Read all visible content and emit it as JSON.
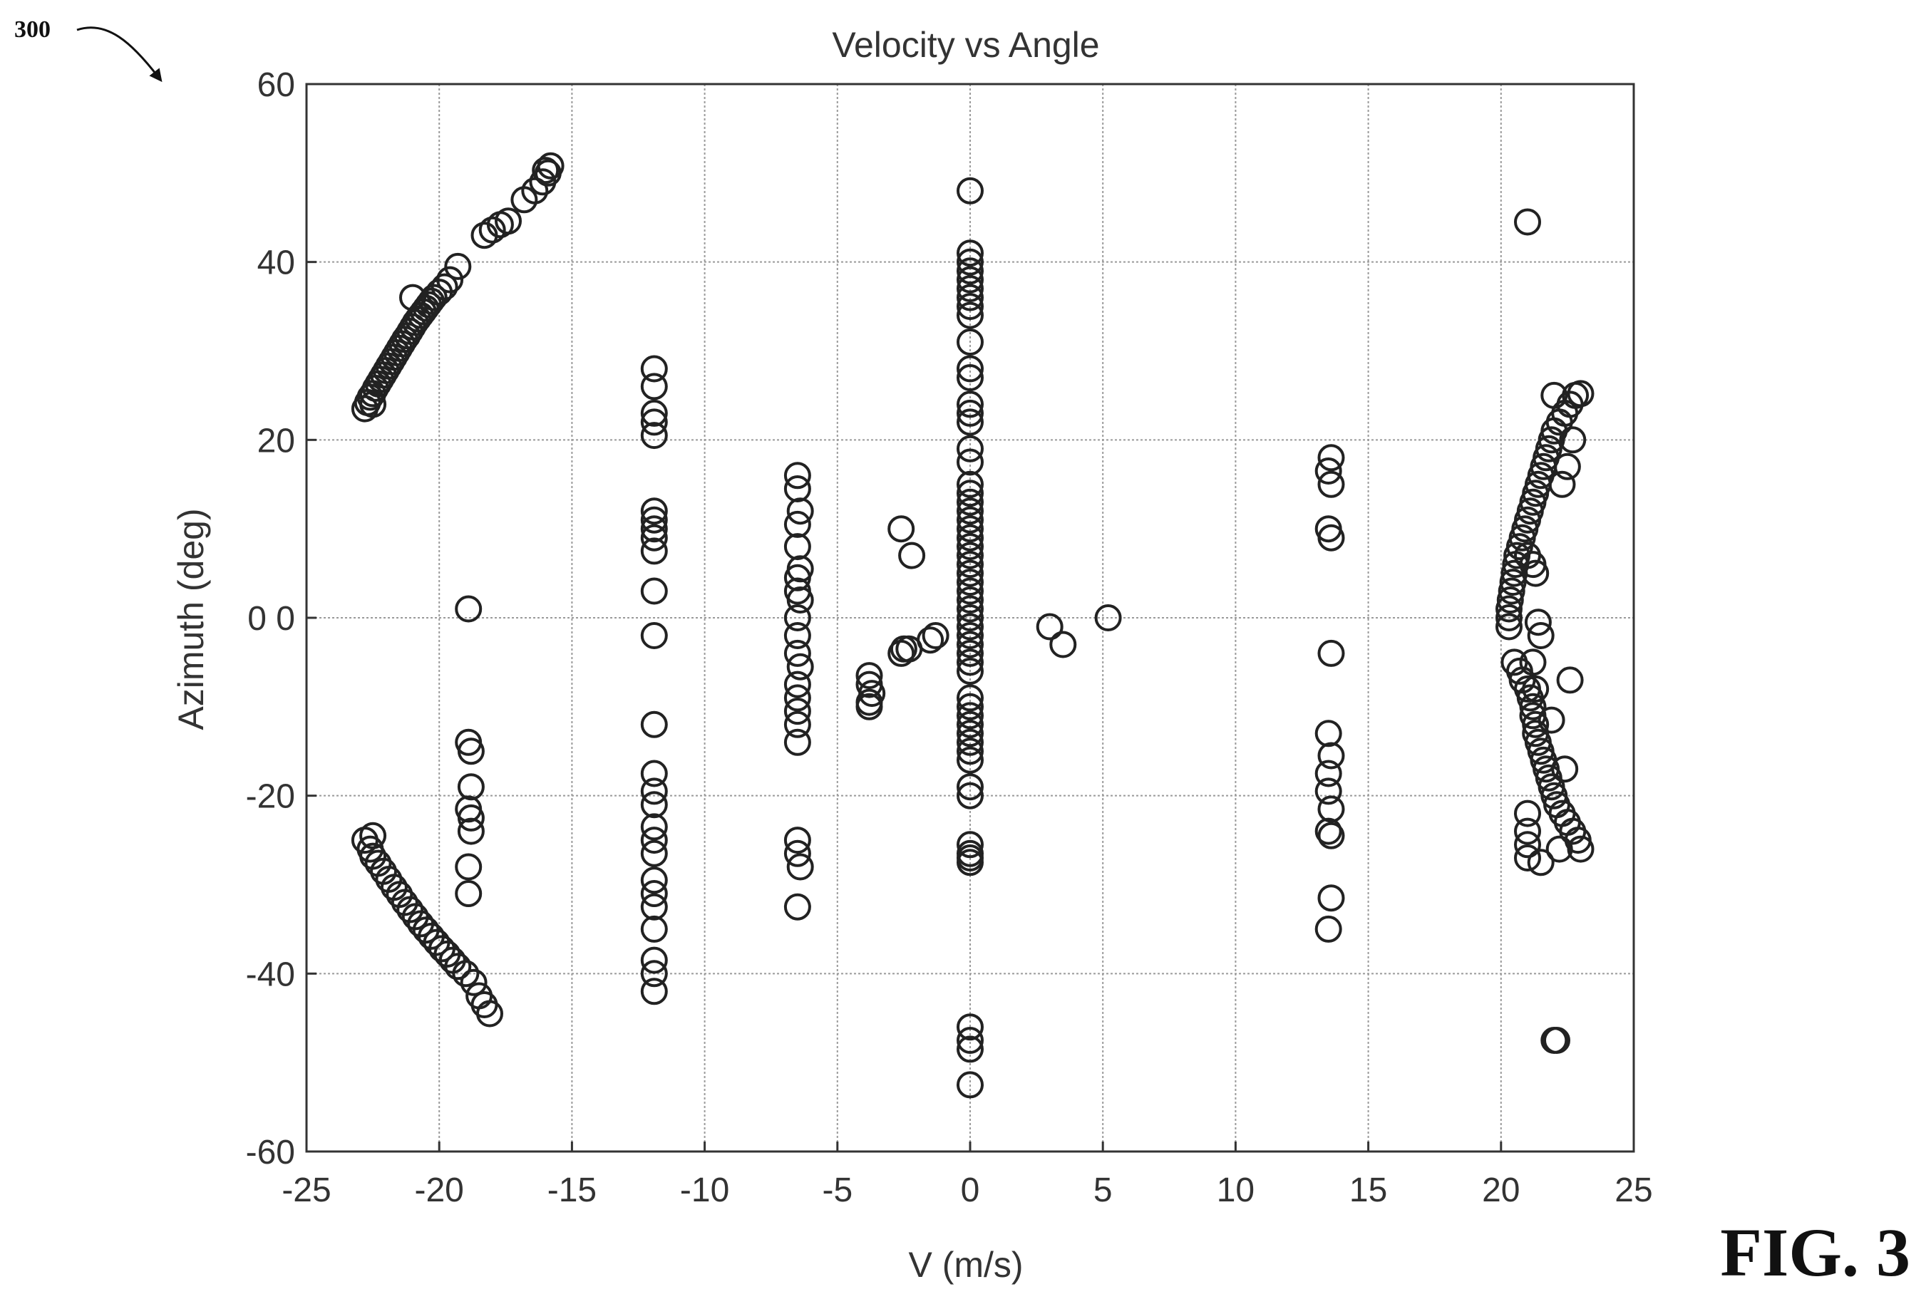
{
  "figure": {
    "ref_number": "300",
    "fig_label": "FIG. 3"
  },
  "chart_data": {
    "type": "scatter",
    "title": "Velocity vs Angle",
    "xlabel": "V (m/s)",
    "ylabel": "Azimuth (deg)",
    "xlim": [
      -25,
      25
    ],
    "ylim": [
      -60,
      60
    ],
    "xticks": [
      -25,
      -20,
      -15,
      -10,
      -5,
      0,
      5,
      10,
      15,
      20,
      25
    ],
    "yticks": [
      -60,
      -40,
      -20,
      0,
      20,
      40,
      60
    ],
    "xtick_labels": [
      "-25",
      "-20",
      "-15",
      "-10",
      "-5",
      "0",
      "5",
      "10",
      "15",
      "20",
      "25"
    ],
    "ytick_labels": [
      "-60",
      "-40",
      "-20",
      "0 0",
      "20",
      "40",
      "60"
    ],
    "grid": true,
    "marker": "open-circle",
    "color": "#222222",
    "points": [
      [
        -22.8,
        23.5
      ],
      [
        -22.7,
        24.2
      ],
      [
        -22.6,
        24.8
      ],
      [
        -22.5,
        25.2
      ],
      [
        -22.4,
        25.8
      ],
      [
        -22.3,
        26.3
      ],
      [
        -22.2,
        26.8
      ],
      [
        -22.1,
        27.3
      ],
      [
        -22.0,
        27.8
      ],
      [
        -21.9,
        28.3
      ],
      [
        -21.8,
        28.8
      ],
      [
        -21.7,
        29.3
      ],
      [
        -21.6,
        29.8
      ],
      [
        -21.5,
        30.3
      ],
      [
        -21.4,
        30.8
      ],
      [
        -21.3,
        31.3
      ],
      [
        -21.2,
        31.7
      ],
      [
        -21.1,
        32.2
      ],
      [
        -21.0,
        32.7
      ],
      [
        -20.9,
        33.2
      ],
      [
        -20.8,
        33.6
      ],
      [
        -20.7,
        34.0
      ],
      [
        -20.6,
        34.4
      ],
      [
        -20.5,
        34.8
      ],
      [
        -20.4,
        35.2
      ],
      [
        -20.3,
        35.6
      ],
      [
        -20.2,
        36.0
      ],
      [
        -20.0,
        36.6
      ],
      [
        -19.8,
        37.2
      ],
      [
        -19.6,
        38.0
      ],
      [
        -19.3,
        39.5
      ],
      [
        -21.0,
        36.0
      ],
      [
        -22.5,
        24.0
      ],
      [
        -18.3,
        43.0
      ],
      [
        -18.0,
        43.6
      ],
      [
        -17.7,
        44.2
      ],
      [
        -17.4,
        44.6
      ],
      [
        -16.8,
        47.0
      ],
      [
        -16.4,
        48.0
      ],
      [
        -16.1,
        49.0
      ],
      [
        -15.9,
        50.0
      ],
      [
        -15.8,
        50.8
      ],
      [
        -16.0,
        50.3
      ],
      [
        -22.8,
        -25.0
      ],
      [
        -22.6,
        -26.0
      ],
      [
        -22.5,
        -26.8
      ],
      [
        -22.3,
        -27.6
      ],
      [
        -22.1,
        -28.5
      ],
      [
        -21.9,
        -29.4
      ],
      [
        -21.7,
        -30.3
      ],
      [
        -21.5,
        -31.1
      ],
      [
        -21.3,
        -32.0
      ],
      [
        -21.1,
        -32.8
      ],
      [
        -20.9,
        -33.6
      ],
      [
        -20.7,
        -34.4
      ],
      [
        -20.5,
        -35.1
      ],
      [
        -20.3,
        -35.8
      ],
      [
        -20.1,
        -36.5
      ],
      [
        -19.9,
        -37.2
      ],
      [
        -19.7,
        -37.8
      ],
      [
        -19.5,
        -38.5
      ],
      [
        -19.3,
        -39.2
      ],
      [
        -19.0,
        -40.0
      ],
      [
        -18.7,
        -41.0
      ],
      [
        -18.5,
        -42.5
      ],
      [
        -18.3,
        -43.5
      ],
      [
        -18.1,
        -44.5
      ],
      [
        -22.5,
        -24.5
      ],
      [
        -18.9,
        1.0
      ],
      [
        -18.9,
        -14.0
      ],
      [
        -18.8,
        -15.0
      ],
      [
        -18.8,
        -19.0
      ],
      [
        -18.9,
        -21.5
      ],
      [
        -18.8,
        -22.5
      ],
      [
        -18.8,
        -24.0
      ],
      [
        -18.9,
        -28.0
      ],
      [
        -18.9,
        -31.0
      ],
      [
        -11.9,
        28.0
      ],
      [
        -11.9,
        26.0
      ],
      [
        -11.9,
        23.0
      ],
      [
        -11.9,
        22.0
      ],
      [
        -11.9,
        20.5
      ],
      [
        -11.9,
        12.0
      ],
      [
        -11.9,
        11.0
      ],
      [
        -11.9,
        10.0
      ],
      [
        -11.9,
        9.0
      ],
      [
        -11.9,
        7.5
      ],
      [
        -11.9,
        3.0
      ],
      [
        -11.9,
        -2.0
      ],
      [
        -11.9,
        -12.0
      ],
      [
        -11.9,
        -17.5
      ],
      [
        -11.9,
        -19.5
      ],
      [
        -11.9,
        -21.0
      ],
      [
        -11.9,
        -23.5
      ],
      [
        -11.9,
        -25.0
      ],
      [
        -11.9,
        -26.5
      ],
      [
        -11.9,
        -29.5
      ],
      [
        -11.9,
        -31.0
      ],
      [
        -11.9,
        -32.5
      ],
      [
        -11.9,
        -35.0
      ],
      [
        -11.9,
        -38.5
      ],
      [
        -11.9,
        -40.0
      ],
      [
        -11.9,
        -42.0
      ],
      [
        -6.5,
        16.0
      ],
      [
        -6.5,
        14.5
      ],
      [
        -6.4,
        12.0
      ],
      [
        -6.5,
        10.5
      ],
      [
        -6.5,
        8.0
      ],
      [
        -6.4,
        5.5
      ],
      [
        -6.5,
        4.5
      ],
      [
        -6.5,
        3.0
      ],
      [
        -6.4,
        2.0
      ],
      [
        -6.5,
        0.0
      ],
      [
        -6.5,
        -2.0
      ],
      [
        -6.5,
        -4.0
      ],
      [
        -6.4,
        -5.5
      ],
      [
        -6.5,
        -7.5
      ],
      [
        -6.5,
        -9.0
      ],
      [
        -6.5,
        -10.5
      ],
      [
        -6.5,
        -12.0
      ],
      [
        -6.5,
        -14.0
      ],
      [
        -6.5,
        -25.0
      ],
      [
        -6.5,
        -26.5
      ],
      [
        -6.4,
        -28.0
      ],
      [
        -6.5,
        -32.5
      ],
      [
        -3.8,
        -6.5
      ],
      [
        -3.8,
        -7.5
      ],
      [
        -3.7,
        -8.5
      ],
      [
        -3.8,
        -9.5
      ],
      [
        -3.8,
        -10.0
      ],
      [
        -2.6,
        10.0
      ],
      [
        -2.2,
        7.0
      ],
      [
        -2.5,
        -3.5
      ],
      [
        -2.3,
        -3.5
      ],
      [
        -2.6,
        -4.0
      ],
      [
        -1.5,
        -2.5
      ],
      [
        -1.3,
        -2.0
      ],
      [
        0,
        48.0
      ],
      [
        0,
        41.0
      ],
      [
        0,
        40.0
      ],
      [
        0,
        39.0
      ],
      [
        0,
        38.0
      ],
      [
        0,
        37.0
      ],
      [
        0,
        36.0
      ],
      [
        0,
        35.0
      ],
      [
        0,
        34.0
      ],
      [
        0,
        31.0
      ],
      [
        0,
        28.0
      ],
      [
        0,
        27.0
      ],
      [
        0,
        24.0
      ],
      [
        0,
        23.0
      ],
      [
        0,
        22.0
      ],
      [
        0,
        19.0
      ],
      [
        0,
        17.5
      ],
      [
        0,
        15.0
      ],
      [
        0,
        14.0
      ],
      [
        0,
        13.0
      ],
      [
        0,
        12.0
      ],
      [
        0,
        11.0
      ],
      [
        0,
        10.0
      ],
      [
        0,
        9.0
      ],
      [
        0,
        8.0
      ],
      [
        0,
        7.0
      ],
      [
        0,
        6.0
      ],
      [
        0,
        5.0
      ],
      [
        0,
        4.0
      ],
      [
        0,
        3.0
      ],
      [
        0,
        2.0
      ],
      [
        0,
        1.0
      ],
      [
        0,
        0.0
      ],
      [
        0,
        -1.0
      ],
      [
        0,
        -2.0
      ],
      [
        0,
        -3.0
      ],
      [
        0,
        -4.0
      ],
      [
        0,
        -5.0
      ],
      [
        0,
        -6.0
      ],
      [
        0,
        -9.0
      ],
      [
        0,
        -10.0
      ],
      [
        0,
        -11.0
      ],
      [
        0,
        -12.0
      ],
      [
        0,
        -13.0
      ],
      [
        0,
        -14.0
      ],
      [
        0,
        -15.0
      ],
      [
        0,
        -16.0
      ],
      [
        0,
        -19.0
      ],
      [
        0,
        -20.0
      ],
      [
        0,
        -25.5
      ],
      [
        0,
        -26.5
      ],
      [
        0,
        -27.0
      ],
      [
        0,
        -27.5
      ],
      [
        0,
        -46.0
      ],
      [
        0,
        -47.5
      ],
      [
        0,
        -48.5
      ],
      [
        0,
        -52.5
      ],
      [
        3.0,
        -1.0
      ],
      [
        3.5,
        -3.0
      ],
      [
        5.2,
        0.0
      ],
      [
        13.6,
        18.0
      ],
      [
        13.5,
        16.5
      ],
      [
        13.6,
        15.0
      ],
      [
        13.5,
        10.0
      ],
      [
        13.6,
        9.0
      ],
      [
        13.6,
        -4.0
      ],
      [
        13.5,
        -13.0
      ],
      [
        13.6,
        -15.5
      ],
      [
        13.5,
        -17.5
      ],
      [
        13.5,
        -19.5
      ],
      [
        13.6,
        -21.5
      ],
      [
        13.5,
        -24.0
      ],
      [
        13.6,
        -24.5
      ],
      [
        13.6,
        -31.5
      ],
      [
        13.5,
        -35.0
      ],
      [
        21.0,
        44.5
      ],
      [
        20.3,
        -1.0
      ],
      [
        20.3,
        0.0
      ],
      [
        20.3,
        1.0
      ],
      [
        20.35,
        2.0
      ],
      [
        20.4,
        3.0
      ],
      [
        20.45,
        4.0
      ],
      [
        20.5,
        5.0
      ],
      [
        20.55,
        6.0
      ],
      [
        20.6,
        7.0
      ],
      [
        20.7,
        8.0
      ],
      [
        20.8,
        9.0
      ],
      [
        20.9,
        10.0
      ],
      [
        21.0,
        11.0
      ],
      [
        21.1,
        12.0
      ],
      [
        21.2,
        13.0
      ],
      [
        21.3,
        14.0
      ],
      [
        21.4,
        15.0
      ],
      [
        21.5,
        16.0
      ],
      [
        21.6,
        17.0
      ],
      [
        21.7,
        18.0
      ],
      [
        21.8,
        19.0
      ],
      [
        21.9,
        20.0
      ],
      [
        22.0,
        21.0
      ],
      [
        22.2,
        22.0
      ],
      [
        22.4,
        23.0
      ],
      [
        22.6,
        24.0
      ],
      [
        22.8,
        25.0
      ],
      [
        23.0,
        25.2
      ],
      [
        22.0,
        25.0
      ],
      [
        22.5,
        17.0
      ],
      [
        22.3,
        15.0
      ],
      [
        22.7,
        20.0
      ],
      [
        21.0,
        7.0
      ],
      [
        21.2,
        6.0
      ],
      [
        21.3,
        5.0
      ],
      [
        20.5,
        -5.0
      ],
      [
        20.7,
        -6.0
      ],
      [
        20.8,
        -7.0
      ],
      [
        21.0,
        -8.0
      ],
      [
        21.1,
        -9.0
      ],
      [
        21.2,
        -10.0
      ],
      [
        21.2,
        -11.0
      ],
      [
        21.3,
        -12.0
      ],
      [
        21.3,
        -13.0
      ],
      [
        21.4,
        -14.0
      ],
      [
        21.5,
        -15.0
      ],
      [
        21.6,
        -16.0
      ],
      [
        21.7,
        -17.0
      ],
      [
        21.8,
        -18.0
      ],
      [
        21.9,
        -19.0
      ],
      [
        22.0,
        -20.0
      ],
      [
        22.1,
        -21.0
      ],
      [
        22.3,
        -22.0
      ],
      [
        22.5,
        -23.0
      ],
      [
        22.7,
        -24.0
      ],
      [
        22.9,
        -25.0
      ],
      [
        23.0,
        -26.0
      ],
      [
        22.6,
        -7.0
      ],
      [
        21.9,
        -11.5
      ],
      [
        22.4,
        -17.0
      ],
      [
        22.2,
        -26.0
      ],
      [
        21.0,
        -22.0
      ],
      [
        21.0,
        -24.0
      ],
      [
        21.0,
        -25.5
      ],
      [
        21.0,
        -27.0
      ],
      [
        21.5,
        -27.5
      ],
      [
        21.2,
        -5.0
      ],
      [
        21.3,
        -8.0
      ],
      [
        21.5,
        -2.0
      ],
      [
        21.4,
        -0.5
      ],
      [
        22.0,
        -47.5
      ],
      [
        22.1,
        -47.5
      ]
    ]
  }
}
